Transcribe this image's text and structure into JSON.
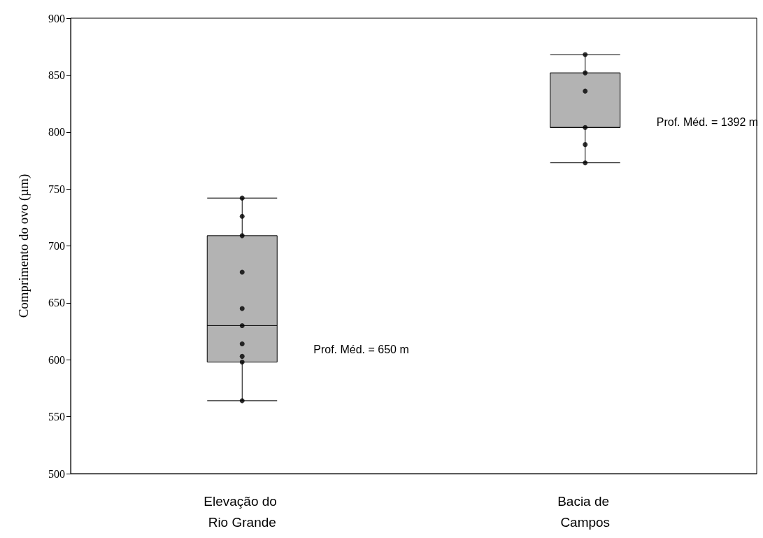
{
  "chart_data": {
    "type": "box",
    "ylabel": "Comprimento do ovo (µm)",
    "categories": [
      "Elevação do Rio Grande",
      "Bacia de Campos"
    ],
    "boxes": [
      {
        "low": 564,
        "q1": 598,
        "median": 630,
        "q3": 709,
        "high": 742
      },
      {
        "low": 773,
        "q1": 804,
        "median": 804,
        "q3": 852,
        "high": 868
      }
    ],
    "color": "#b3b3b3",
    "series": [
      {
        "type": "scatter",
        "color": "#000000",
        "x": [
          "Elevação do Rio Grande",
          "Elevação do Rio Grande",
          "Elevação do Rio Grande",
          "Elevação do Rio Grande",
          "Elevação do Rio Grande",
          "Elevação do Rio Grande",
          "Elevação do Rio Grande",
          "Elevação do Rio Grande",
          "Elevação do Rio Grande",
          "Elevação do Rio Grande",
          "Bacia de Campos",
          "Bacia de Campos",
          "Bacia de Campos",
          "Bacia de Campos",
          "Bacia de Campos",
          "Bacia de Campos"
        ],
        "values": [
          742,
          726,
          709,
          677,
          645,
          630,
          614,
          603,
          598,
          564,
          868,
          852,
          836,
          804,
          789,
          773
        ]
      }
    ],
    "marker": "circle",
    "ylim": [
      500,
      900
    ],
    "yticks": [
      500,
      550,
      600,
      650,
      700,
      750,
      800,
      850,
      900
    ],
    "grid": false,
    "annotations": [
      "Prof. Méd. = 650 m",
      "Prof. Méd. = 1392 m"
    ]
  }
}
